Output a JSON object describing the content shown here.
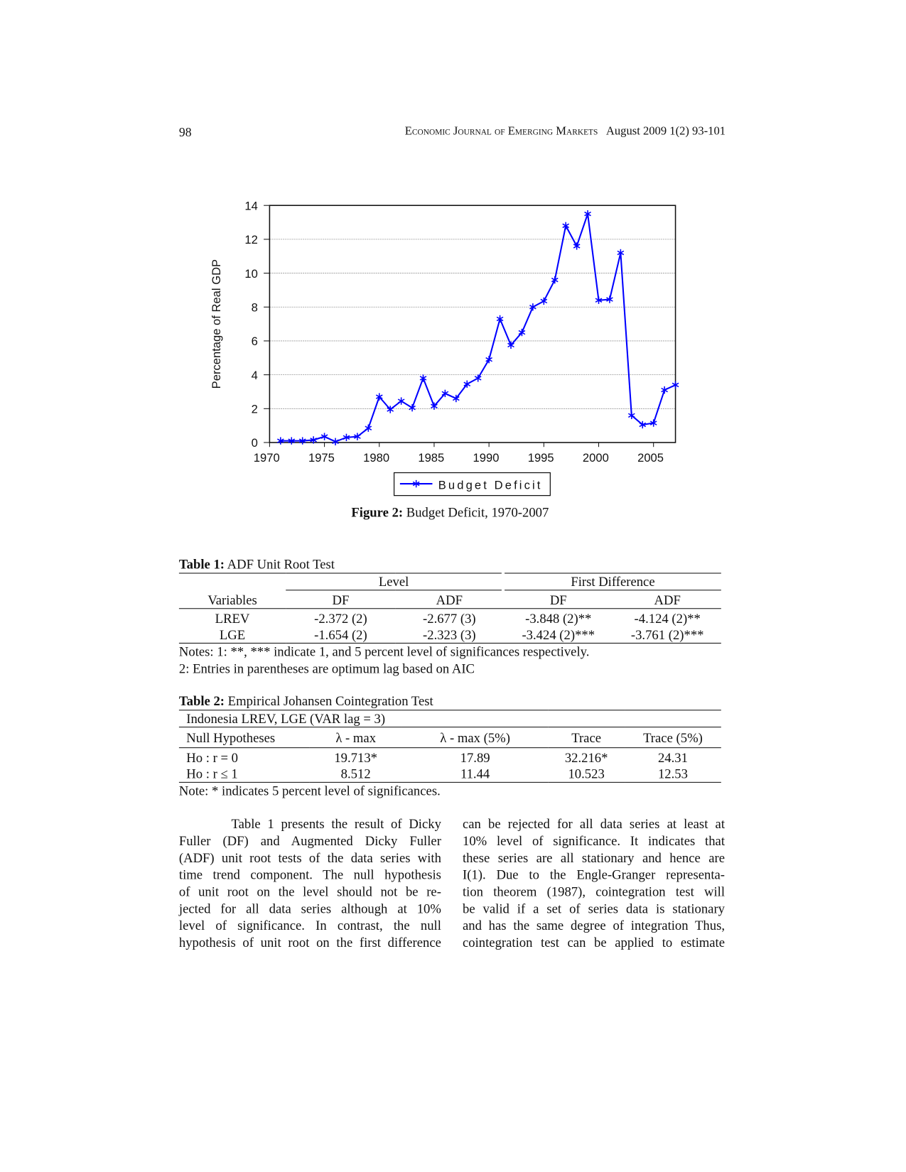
{
  "header": {
    "page_number": "98",
    "journal": "Economic Journal of Emerging Markets",
    "issue": "August 2009 1(2) 93-101"
  },
  "chart_data": {
    "type": "line",
    "y_label": "Percentage of Real GDP",
    "x": [
      1971,
      1972,
      1973,
      1974,
      1975,
      1976,
      1977,
      1978,
      1979,
      1980,
      1981,
      1982,
      1983,
      1984,
      1985,
      1986,
      1987,
      1988,
      1989,
      1990,
      1991,
      1992,
      1993,
      1994,
      1995,
      1996,
      1997,
      1998,
      1999,
      2000,
      2001,
      2002,
      2003,
      2004,
      2005,
      2006,
      2007
    ],
    "series": [
      {
        "name": "Budget Deficit",
        "color": "#0000ff",
        "values": [
          0.1,
          0.1,
          0.1,
          0.15,
          0.35,
          0.05,
          0.3,
          0.35,
          0.85,
          2.7,
          1.95,
          2.45,
          2.05,
          3.8,
          2.15,
          2.9,
          2.6,
          3.45,
          3.8,
          4.9,
          7.3,
          5.75,
          6.5,
          8.0,
          8.35,
          9.6,
          12.8,
          11.6,
          13.5,
          8.4,
          8.45,
          11.2,
          1.6,
          1.05,
          1.15,
          3.1,
          3.4
        ]
      }
    ],
    "xlim": [
      1970,
      2007
    ],
    "xticks": [
      1970,
      1975,
      1980,
      1985,
      1990,
      1995,
      2000,
      2005
    ],
    "ylim": [
      0,
      14
    ],
    "yticks": [
      0,
      2,
      4,
      6,
      8,
      10,
      12,
      14
    ],
    "grid": true,
    "legend": "bottom"
  },
  "figure": {
    "label": "Figure 2:",
    "caption": "Budget Deficit, 1970-2007"
  },
  "table1": {
    "label": "Table 1:",
    "title": "ADF Unit Root Test",
    "groups": [
      "Level",
      "First Difference"
    ],
    "columns": [
      "Variables",
      "DF",
      "ADF",
      "DF",
      "ADF"
    ],
    "rows": [
      [
        "LREV",
        "-2.372 (2)",
        "-2.677 (3)",
        "-3.848 (2)**",
        "-4.124 (2)**"
      ],
      [
        "LGE",
        "-1.654 (2)",
        "-2.323 (3)",
        "-3.424 (2)***",
        "-3.761 (2)***"
      ]
    ],
    "notes": [
      "Notes: 1: **, *** indicate 1, and 5 percent level of significances respectively.",
      "2: Entries in parentheses are optimum lag based on AIC"
    ]
  },
  "table2": {
    "label": "Table 2:",
    "title": "Empirical Johansen Cointegration Test",
    "subtitle": "Indonesia LREV, LGE (VAR lag = 3)",
    "columns": [
      "Null Hypotheses",
      "λ - max",
      "λ - max (5%)",
      "Trace",
      "Trace (5%)"
    ],
    "rows": [
      [
        "Ho : r = 0",
        "19.713*",
        "17.89",
        "32.216*",
        "24.31"
      ],
      [
        "Ho : r ≤ 1",
        "8.512",
        "11.44",
        "10.523",
        "12.53"
      ]
    ],
    "note": "Note: * indicates 5 percent level of significances."
  },
  "body": {
    "left": [
      "Table 1 presents the result of Dicky",
      "Fuller (DF) and Augmented Dicky Fuller",
      "(ADF) unit root tests of the data series with",
      "time trend component. The null hypothesis",
      "of unit root on the level should not be re-",
      "jected for all data series although at 10%",
      "level of significance. In contrast, the null",
      "hypothesis of unit root on the first difference"
    ],
    "right": [
      "can be rejected for all data series at least at",
      "10% level of significance. It indicates that",
      "these series are all stationary and hence are",
      "I(1). Due to the Engle-Granger representa-",
      "tion theorem (1987), cointegration test will",
      "be valid if a set of series data is stationary",
      "and has the same degree of integration Thus,",
      "cointegration test can be applied to estimate"
    ]
  }
}
